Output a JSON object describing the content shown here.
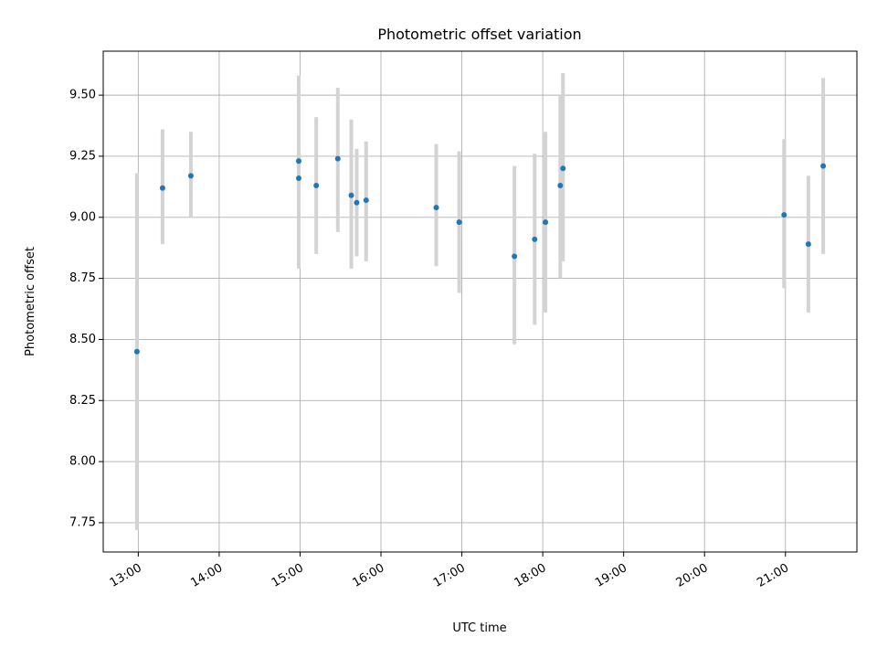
{
  "chart_data": {
    "type": "scatter",
    "title": "Photometric offset variation",
    "xlabel": "UTC time",
    "ylabel": "Photometric offset",
    "x_ticks": [
      "13:00",
      "14:00",
      "15:00",
      "16:00",
      "17:00",
      "18:00",
      "19:00",
      "20:00",
      "21:00"
    ],
    "y_ticks": [
      "7.75",
      "8.00",
      "8.25",
      "8.50",
      "8.75",
      "9.00",
      "9.25",
      "9.50"
    ],
    "xlim": [
      "12:34",
      "21:53"
    ],
    "ylim": [
      7.63,
      9.68
    ],
    "grid": true,
    "point_color": "#1f77b4",
    "errorbar_color": "#d3d3d3",
    "points": [
      {
        "x": "12:59",
        "y": 8.45,
        "ylow": 7.72,
        "yhigh": 9.18
      },
      {
        "x": "13:18",
        "y": 9.12,
        "ylow": 8.89,
        "yhigh": 9.36
      },
      {
        "x": "13:39",
        "y": 9.17,
        "ylow": 9.0,
        "yhigh": 9.35
      },
      {
        "x": "14:59",
        "y": 9.23,
        "ylow": 8.89,
        "yhigh": 9.58
      },
      {
        "x": "14:59",
        "y": 9.16,
        "ylow": 8.79,
        "yhigh": 9.53
      },
      {
        "x": "15:12",
        "y": 9.13,
        "ylow": 8.85,
        "yhigh": 9.41
      },
      {
        "x": "15:28",
        "y": 9.24,
        "ylow": 8.94,
        "yhigh": 9.53
      },
      {
        "x": "15:38",
        "y": 9.09,
        "ylow": 8.79,
        "yhigh": 9.4
      },
      {
        "x": "15:42",
        "y": 9.06,
        "ylow": 8.84,
        "yhigh": 9.28
      },
      {
        "x": "15:49",
        "y": 9.07,
        "ylow": 8.82,
        "yhigh": 9.31
      },
      {
        "x": "16:41",
        "y": 9.04,
        "ylow": 8.8,
        "yhigh": 9.3
      },
      {
        "x": "16:58",
        "y": 8.98,
        "ylow": 8.69,
        "yhigh": 9.27
      },
      {
        "x": "17:39",
        "y": 8.84,
        "ylow": 8.48,
        "yhigh": 9.21
      },
      {
        "x": "17:54",
        "y": 8.91,
        "ylow": 8.56,
        "yhigh": 9.26
      },
      {
        "x": "18:02",
        "y": 8.98,
        "ylow": 8.61,
        "yhigh": 9.35
      },
      {
        "x": "18:13",
        "y": 9.13,
        "ylow": 8.75,
        "yhigh": 9.5
      },
      {
        "x": "18:15",
        "y": 9.2,
        "ylow": 8.82,
        "yhigh": 9.59
      },
      {
        "x": "20:59",
        "y": 9.01,
        "ylow": 8.71,
        "yhigh": 9.32
      },
      {
        "x": "21:17",
        "y": 8.89,
        "ylow": 8.61,
        "yhigh": 9.17
      },
      {
        "x": "21:28",
        "y": 9.21,
        "ylow": 8.85,
        "yhigh": 9.57
      }
    ]
  }
}
